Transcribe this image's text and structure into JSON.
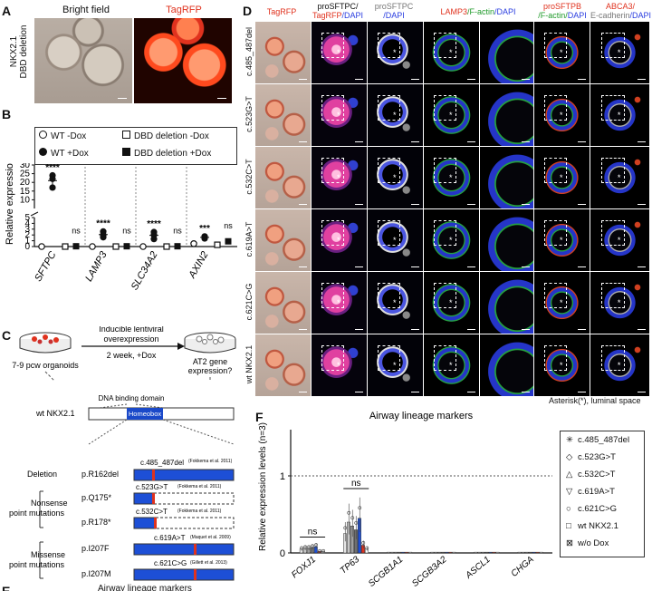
{
  "panel_a": {
    "letter": "A",
    "bright_field": "Bright field",
    "tagrfp": "TagRFP",
    "row_label_1": "NKX2.1",
    "row_label_2": "DBD deletion"
  },
  "panel_b": {
    "letter": "B",
    "legend": [
      "WT -Dox",
      "DBD deletion -Dox",
      "WT +Dox",
      "DBD deletion +Dox"
    ],
    "significance": [
      "****",
      "ns",
      "****",
      "ns",
      "****",
      "ns",
      "***",
      "ns"
    ]
  },
  "panel_c": {
    "letter": "C",
    "organoids_label": "7-9 pcw organoids",
    "step_title_1": "Inducible lentiviral",
    "step_title_2": "overexpression",
    "step_subtitle": "2 week, +Dox",
    "result_1": "AT2 gene",
    "result_2": "expression?",
    "domain_label": "DNA binding domain",
    "wt_label": "wt NKX2.1",
    "homeobox": "Homeobox",
    "deletion_group": "Deletion",
    "deletion_protein": "p.R162del",
    "deletion_mutation": "c.485_487del",
    "deletion_ref": "(Fokkema et al. 2011)",
    "nonsense_group_1": "Nonsense",
    "nonsense_group_2": "point mutations",
    "q175_protein": "p.Q175*",
    "q175_mutation": "c.523G>T",
    "q175_ref": "(Fokkema et al. 2011)",
    "r178_protein": "p.R178*",
    "r178_mutation": "c.532C>T",
    "r178_ref": "(Fokkema et al. 2011)",
    "missense_group_1": "Missense",
    "missense_group_2": "point mutations",
    "i207f_protein": "p.I207F",
    "i207f_mutation": "c.619A>T",
    "i207f_ref": "(Maquet et al. 2009)",
    "i207m_protein": "p.I207M",
    "i207m_mutation": "c.621C>G",
    "i207m_ref": "(Gillett et al. 2013)"
  },
  "panel_d": {
    "letter": "D",
    "col_tagrfp": "TagRFP",
    "col_prosftpc_a": "proSFTPC/",
    "col_prosftpc_b": "TagRFP",
    "col_prosftpc_c": "/DAPI",
    "col_prosftpc2_a": "proSFTPC",
    "col_prosftpc2_b": "/DAPI",
    "col_lamp3_a": "LAMP3",
    "col_lamp3_b": "/F-actin",
    "col_lamp3_c": "/DAPI",
    "col_prosftpb_a": "proSFTPB",
    "col_prosftpb_b": "/F-actin/",
    "col_prosftpb_c": "DAPI",
    "col_abca3_a": "ABCA3/",
    "col_abca3_b": "E-cadherin",
    "col_abca3_c": "/DAPI",
    "rows": [
      "c.485_487del",
      "c.523G>T",
      "c.532C>T",
      "c.619A>T",
      "c.621C>G",
      "wt NKX2.1"
    ],
    "footnote": "Asterisk(*), luminal space",
    "asterisk": "*"
  },
  "panel_f": {
    "letter": "F",
    "legend": [
      "c.485_487del",
      "c.523G>T",
      "c.532C>T",
      "c.619A>T",
      "c.621C>G",
      "wt NKX2.1",
      "w/o Dox"
    ],
    "legend_symbols": [
      "✳",
      "◇",
      "△",
      "▽",
      "○",
      "□",
      "⊠"
    ],
    "significance": [
      "ns",
      "ns"
    ]
  },
  "panel_e_letter": "E",
  "panel_e_partial": "Airway lineage markers",
  "colors": {
    "homeobox_blue": "#1a49c9",
    "mutation_red": "#e0321e",
    "bar_blue": "#1d4fd6",
    "tagrfp_red": "#e0321e",
    "dapi_blue": "#2a3de0",
    "factin_green": "#1f9a2a"
  },
  "chart_data": [
    {
      "id": "panel_b",
      "type": "scatter",
      "title": "",
      "xlabel": "",
      "ylabel": "Relative expression levels",
      "categories": [
        "SFTPC",
        "LAMP3",
        "SLC34A2",
        "AXIN2"
      ],
      "ylim_lower": [
        0,
        5
      ],
      "ylim_upper": [
        5,
        30
      ],
      "yticks": [
        0,
        1,
        2,
        3,
        4,
        5,
        10,
        15,
        20,
        25,
        30
      ],
      "axis_break": true,
      "series": [
        {
          "name": "WT -Dox",
          "marker": "open circle",
          "values": [
            0,
            0,
            0,
            0.5
          ]
        },
        {
          "name": "WT +Dox",
          "marker": "filled circle",
          "points": [
            [
              24,
              22,
              17
            ],
            [
              2.6,
              2.0,
              1.6
            ],
            [
              2.5,
              2.0,
              1.3
            ],
            [
              1.75,
              1.6,
              1.4
            ]
          ]
        },
        {
          "name": "DBD deletion -Dox",
          "marker": "open square",
          "values": [
            0,
            0,
            0,
            0.3
          ]
        },
        {
          "name": "DBD deletion +Dox",
          "marker": "filled square",
          "values": [
            0.05,
            0.05,
            0.05,
            0.9
          ]
        }
      ]
    },
    {
      "id": "panel_f",
      "type": "bar",
      "title": "Airway lineage markers",
      "xlabel": "",
      "ylabel": "Relative expression levels (n=3)",
      "categories": [
        "FOXJ1",
        "TP63",
        "SCGB1A1",
        "SCGB3A2",
        "ASCL1",
        "CHGA"
      ],
      "ylim": [
        0,
        1.6
      ],
      "yticks": [
        0,
        1
      ],
      "reference_line": 1,
      "series": [
        {
          "name": "c.485_487del",
          "values": [
            0.05,
            0.25,
            0.01,
            0.01,
            0.01,
            0.01
          ]
        },
        {
          "name": "c.523G>T",
          "values": [
            0.06,
            0.4,
            0.01,
            0.01,
            0.01,
            0.01
          ]
        },
        {
          "name": "c.532C>T",
          "values": [
            0.06,
            0.35,
            0.01,
            0.01,
            0.01,
            0.01
          ]
        },
        {
          "name": "c.619A>T",
          "values": [
            0.07,
            0.3,
            0.01,
            0.01,
            0.01,
            0.01
          ]
        },
        {
          "name": "c.621C>G",
          "values": [
            0.08,
            0.45,
            0.01,
            0.01,
            0.01,
            0.01
          ]
        },
        {
          "name": "wt NKX2.1",
          "values": [
            0.02,
            0.1,
            0.01,
            0.01,
            0.01,
            0.01
          ]
        },
        {
          "name": "w/o Dox",
          "values": [
            0.02,
            0.05,
            0.01,
            0.01,
            0.01,
            0.01
          ]
        }
      ]
    }
  ]
}
